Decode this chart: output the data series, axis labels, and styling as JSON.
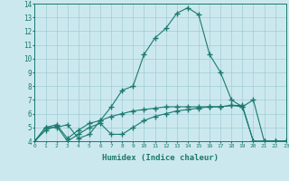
{
  "line1_x": [
    0,
    1,
    2,
    3,
    4,
    5,
    6,
    7,
    8,
    9,
    10,
    11,
    12,
    13,
    14,
    15,
    16,
    17,
    18,
    19,
    20,
    21,
    22,
    23
  ],
  "line1_y": [
    4.0,
    5.0,
    5.0,
    5.2,
    4.2,
    4.5,
    5.5,
    6.5,
    7.7,
    8.0,
    10.3,
    11.5,
    12.2,
    13.3,
    13.7,
    13.2,
    10.3,
    9.0,
    7.0,
    6.5,
    7.0,
    4.0,
    4.0,
    4.0
  ],
  "line2_x": [
    0,
    1,
    2,
    3,
    4,
    5,
    6,
    7,
    8,
    9,
    10,
    11,
    12,
    13,
    14,
    15,
    16,
    17,
    18,
    19,
    20,
    21,
    22,
    23
  ],
  "line2_y": [
    4.0,
    5.0,
    5.2,
    4.2,
    4.8,
    5.3,
    5.5,
    5.8,
    6.0,
    6.2,
    6.3,
    6.4,
    6.5,
    6.5,
    6.5,
    6.5,
    6.5,
    6.5,
    6.6,
    6.6,
    4.0,
    4.0,
    4.0,
    4.0
  ],
  "line3_x": [
    0,
    1,
    2,
    3,
    4,
    5,
    6,
    7,
    8,
    9,
    10,
    11,
    12,
    13,
    14,
    15,
    16,
    17,
    18,
    19,
    20,
    21,
    22,
    23
  ],
  "line3_y": [
    4.0,
    4.8,
    5.1,
    4.0,
    4.5,
    5.0,
    5.3,
    4.5,
    4.5,
    5.0,
    5.5,
    5.8,
    6.0,
    6.2,
    6.3,
    6.4,
    6.5,
    6.5,
    6.6,
    6.5,
    4.0,
    4.0,
    4.0,
    4.0
  ],
  "line_color": "#1a7a6e",
  "bg_color": "#cce8ef",
  "grid_color": "#a0ccd6",
  "xlabel": "Humidex (Indice chaleur)",
  "ylim": [
    4,
    14
  ],
  "xlim": [
    0,
    23
  ],
  "yticks": [
    4,
    5,
    6,
    7,
    8,
    9,
    10,
    11,
    12,
    13,
    14
  ],
  "xticks": [
    0,
    1,
    2,
    3,
    4,
    5,
    6,
    7,
    8,
    9,
    10,
    11,
    12,
    13,
    14,
    15,
    16,
    17,
    18,
    19,
    20,
    21,
    22,
    23
  ]
}
